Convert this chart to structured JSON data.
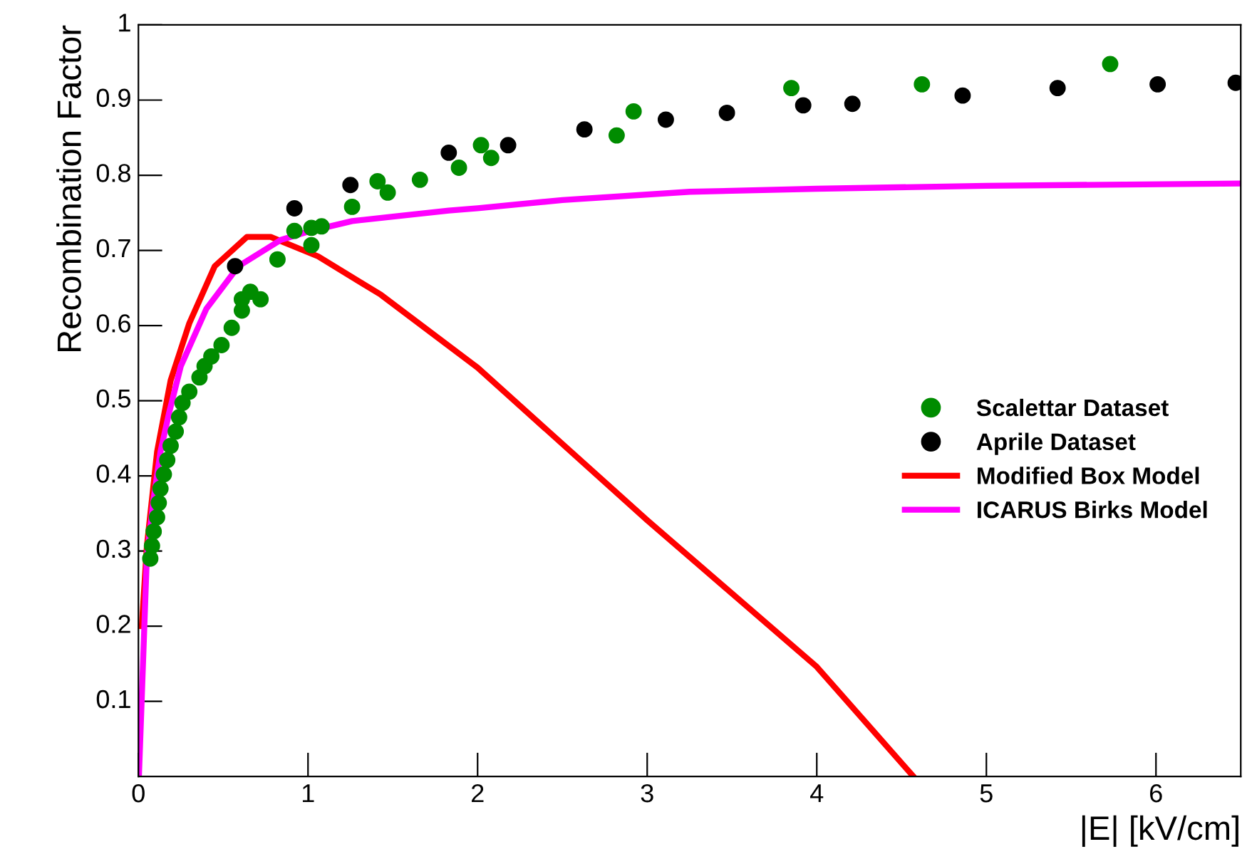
{
  "chart_data": {
    "type": "scatter",
    "xlabel": "|E| [kV/cm]",
    "ylabel": "Recombination Factor",
    "xlim": [
      0,
      6.5
    ],
    "ylim": [
      0,
      1
    ],
    "xticks": [
      0,
      1,
      2,
      3,
      4,
      5,
      6
    ],
    "yticks": [
      0.1,
      0.2,
      0.3,
      0.4,
      0.5,
      0.6,
      0.7,
      0.8,
      0.9,
      1
    ],
    "grid": false,
    "legend": "right",
    "marker": "circle",
    "series": [
      {
        "name": "Scalettar Dataset",
        "color": "#008c00",
        "x": [
          0.07,
          0.08,
          0.09,
          0.11,
          0.12,
          0.13,
          0.15,
          0.17,
          0.19,
          0.22,
          0.24,
          0.26,
          0.3,
          0.36,
          0.39,
          0.43,
          0.49,
          0.55,
          0.61,
          0.61,
          0.66,
          0.72,
          0.82,
          0.92,
          1.02,
          1.02,
          1.08,
          1.26,
          1.41,
          1.47,
          1.66,
          1.89,
          2.02,
          2.08,
          2.82,
          2.92,
          3.85,
          4.62,
          5.73
        ],
        "values": [
          0.29,
          0.307,
          0.326,
          0.345,
          0.364,
          0.383,
          0.402,
          0.421,
          0.44,
          0.459,
          0.478,
          0.497,
          0.512,
          0.531,
          0.546,
          0.559,
          0.574,
          0.597,
          0.62,
          0.635,
          0.645,
          0.635,
          0.688,
          0.726,
          0.73,
          0.707,
          0.732,
          0.758,
          0.792,
          0.777,
          0.794,
          0.81,
          0.84,
          0.823,
          0.853,
          0.885,
          0.916,
          0.921,
          0.948
        ]
      },
      {
        "name": "Aprile Dataset",
        "color": "#000000",
        "x": [
          0.57,
          0.92,
          1.25,
          1.83,
          2.18,
          2.63,
          3.11,
          3.47,
          3.92,
          4.21,
          4.86,
          5.42,
          6.01,
          6.47
        ],
        "values": [
          0.679,
          0.756,
          0.787,
          0.83,
          0.84,
          0.861,
          0.874,
          0.883,
          0.893,
          0.895,
          0.906,
          0.916,
          0.921,
          0.923
        ]
      },
      {
        "name": "Modified Box Model",
        "type": "line",
        "color": "#ff0000",
        "marker": "none",
        "x": [
          0.02,
          0.05,
          0.11,
          0.19,
          0.3,
          0.45,
          0.64,
          0.78,
          1.06,
          1.43,
          2.0,
          3.0,
          4.0,
          4.57
        ],
        "values": [
          0.2,
          0.307,
          0.432,
          0.527,
          0.603,
          0.679,
          0.718,
          0.718,
          0.692,
          0.641,
          0.544,
          0.341,
          0.146,
          0.0
        ]
      },
      {
        "name": "ICARUS Birks Model",
        "type": "line",
        "color": "#ff00ff",
        "marker": "none",
        "x": [
          0.003,
          0.05,
          0.09,
          0.13,
          0.18,
          0.25,
          0.4,
          0.59,
          0.84,
          1.0,
          1.26,
          1.5,
          1.83,
          2.0,
          2.5,
          3.25,
          4.0,
          5.0,
          6.5
        ],
        "values": [
          0.0,
          0.294,
          0.37,
          0.432,
          0.483,
          0.546,
          0.622,
          0.679,
          0.714,
          0.725,
          0.739,
          0.745,
          0.753,
          0.756,
          0.767,
          0.778,
          0.782,
          0.786,
          0.789
        ]
      }
    ]
  }
}
